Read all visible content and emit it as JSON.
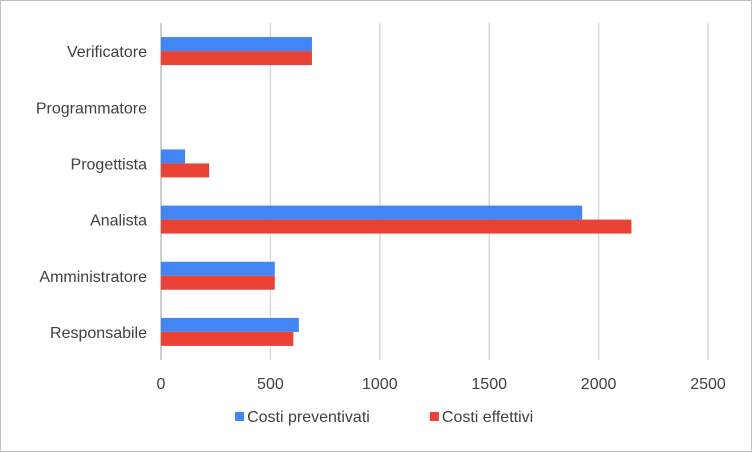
{
  "chart_data": {
    "type": "bar",
    "orientation": "horizontal",
    "title": "",
    "xlabel": "",
    "ylabel": "",
    "categories": [
      "Verificatore",
      "Programmatore",
      "Progettista",
      "Analista",
      "Amministratore",
      "Responsabile"
    ],
    "series": [
      {
        "name": "Costi preventivati",
        "color": "#4285f4",
        "values": [
          690,
          0,
          110,
          1925,
          520,
          630
        ]
      },
      {
        "name": "Costi effettivi",
        "color": "#ea4335",
        "values": [
          690,
          0,
          220,
          2150,
          520,
          605
        ]
      }
    ],
    "xlim": [
      0,
      2500
    ],
    "xticks": [
      "0",
      "500",
      "1000",
      "1500",
      "2000",
      "2500"
    ],
    "grid": true,
    "legend": "bottom"
  }
}
